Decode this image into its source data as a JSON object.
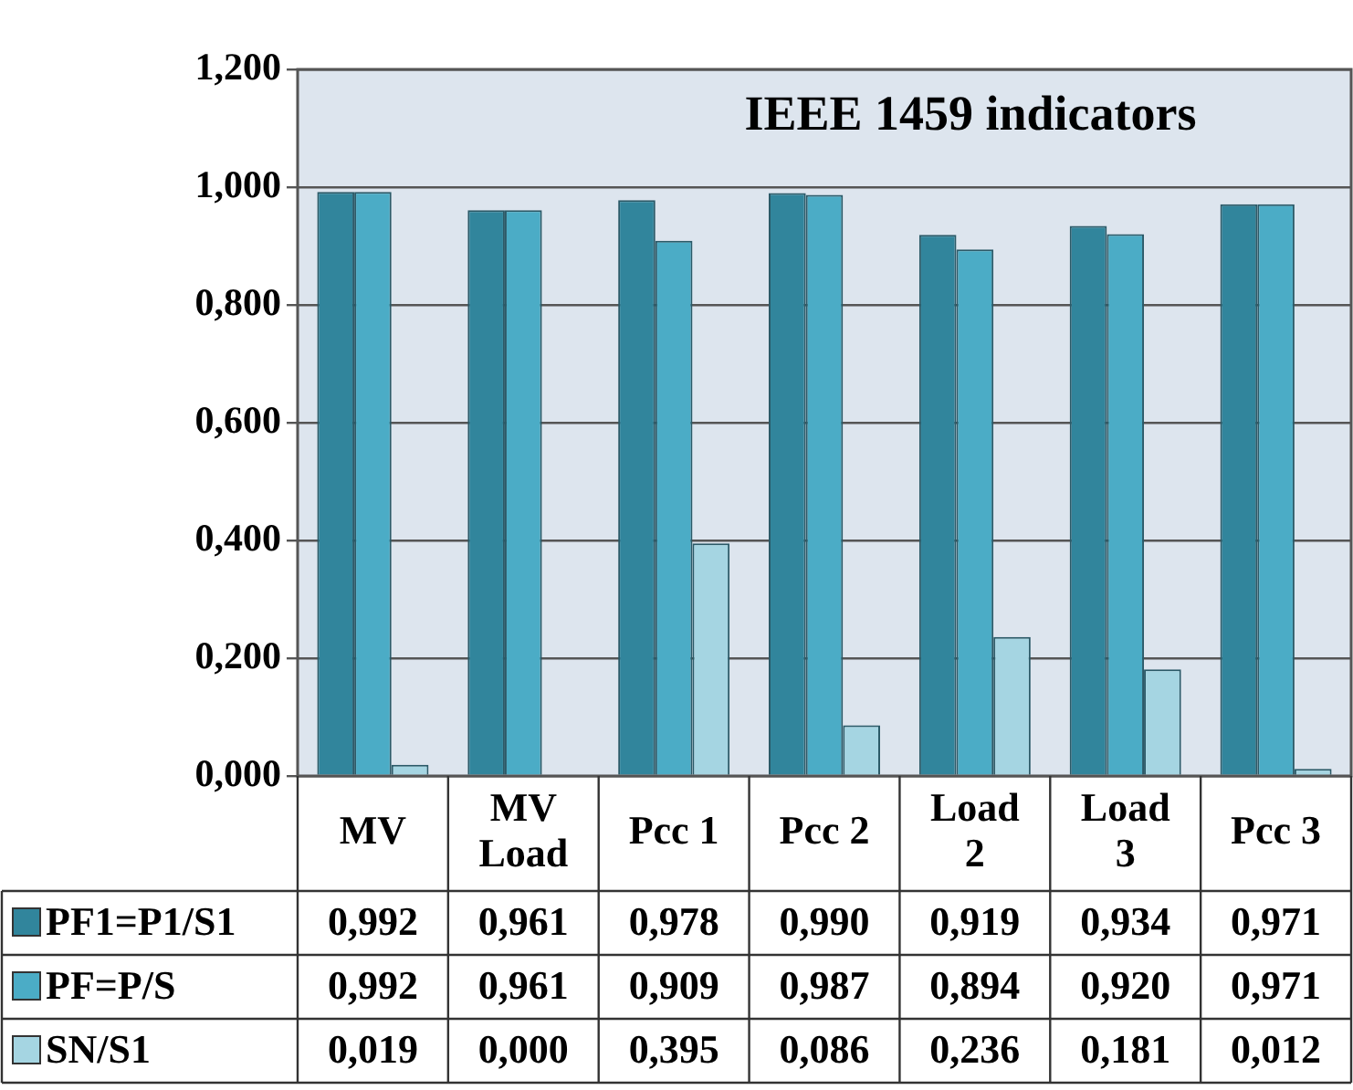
{
  "chart_data": {
    "type": "bar",
    "title": "IEEE 1459 indicators",
    "categories": [
      "MV",
      "MV Load",
      "Pcc 1",
      "Pcc 2",
      "Load 2",
      "Load 3",
      "Pcc 3"
    ],
    "series": [
      {
        "name": "PF1=P1/S1",
        "color": "#31859c",
        "values": [
          0.992,
          0.961,
          0.978,
          0.99,
          0.919,
          0.934,
          0.971
        ],
        "value_labels": [
          "0,992",
          "0,961",
          "0,978",
          "0,990",
          "0,919",
          "0,934",
          "0,971"
        ]
      },
      {
        "name": "PF=P/S",
        "color": "#4bacc6",
        "values": [
          0.992,
          0.961,
          0.909,
          0.987,
          0.894,
          0.92,
          0.971
        ],
        "value_labels": [
          "0,992",
          "0,961",
          "0,909",
          "0,987",
          "0,894",
          "0,920",
          "0,971"
        ]
      },
      {
        "name": "SN/S1",
        "color": "#a5d5e2",
        "values": [
          0.019,
          0.0,
          0.395,
          0.086,
          0.236,
          0.181,
          0.012
        ],
        "value_labels": [
          "0,019",
          "0,000",
          "0,395",
          "0,086",
          "0,236",
          "0,181",
          "0,012"
        ]
      }
    ],
    "ylim": [
      0,
      1.2
    ],
    "yticks": [
      {
        "value": 0,
        "label": "0,000"
      },
      {
        "value": 0.2,
        "label": "0,200"
      },
      {
        "value": 0.4,
        "label": "0,400"
      },
      {
        "value": 0.6,
        "label": "0,600"
      },
      {
        "value": 0.8,
        "label": "0,800"
      },
      {
        "value": 1,
        "label": "1,000"
      },
      {
        "value": 1.2,
        "label": "1,200"
      }
    ],
    "grid": "y",
    "legend": "bottom"
  }
}
